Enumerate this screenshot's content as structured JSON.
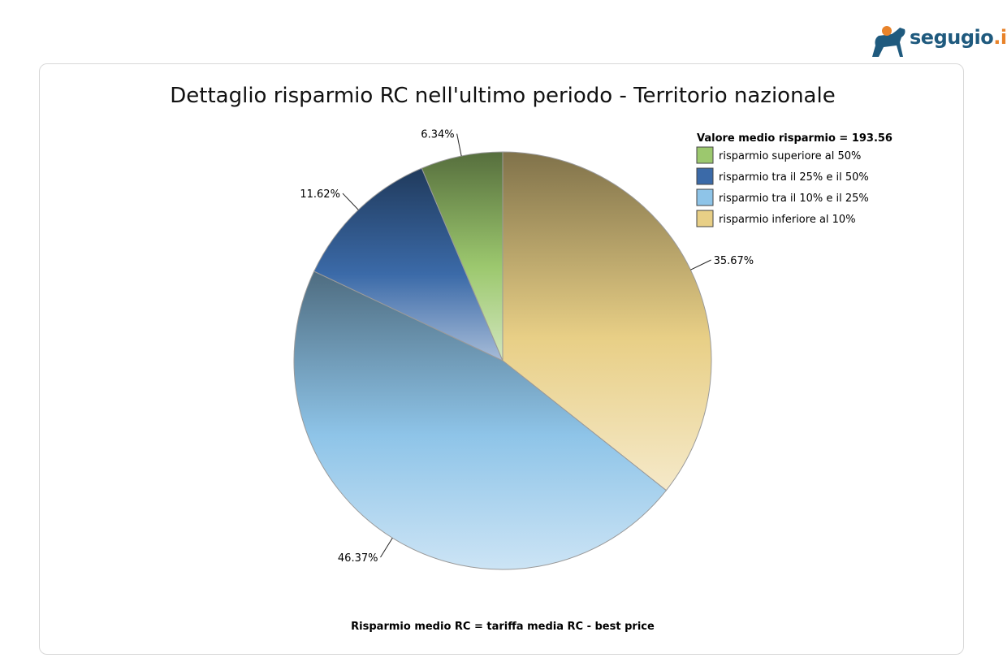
{
  "logo": {
    "name": "segugio",
    "tld": ".it",
    "icon": "dog-icon"
  },
  "chart_data": {
    "type": "pie",
    "title": "Dettaglio risparmio RC nell'ultimo periodo - Territorio nazionale",
    "legend_title": "Valore medio risparmio = 193.56",
    "legend_position": "top-right",
    "footnote": "Risparmio medio RC = tariffa media RC - best price",
    "slices": [
      {
        "name": "risparmio superiore al 50%",
        "value": 6.34,
        "label": "6.34%",
        "color": "#9cc86e"
      },
      {
        "name": "risparmio tra il 25% e il 50%",
        "value": 11.62,
        "label": "11.62%",
        "color": "#3b6aa8"
      },
      {
        "name": "risparmio tra il 10% e il 25%",
        "value": 46.37,
        "label": "46.37%",
        "color": "#8ec4e8"
      },
      {
        "name": "risparmio inferiore al 10%",
        "value": 35.67,
        "label": "35.67%",
        "color": "#e8cf86"
      }
    ],
    "draw_order": [
      3,
      2,
      1,
      0
    ]
  }
}
